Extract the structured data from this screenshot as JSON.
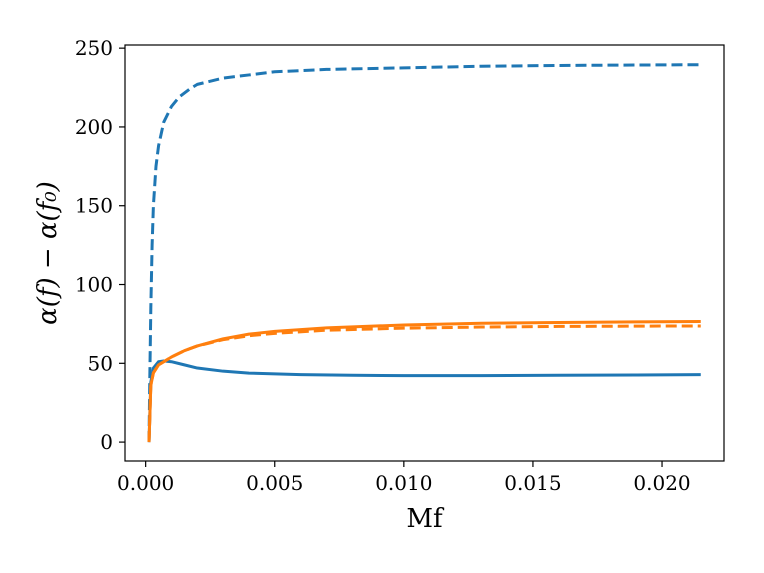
{
  "chart_data": {
    "type": "line",
    "xlabel": "Mf",
    "ylabel": "α(f) − α(f₀)",
    "xlim": [
      -0.0008,
      0.0224
    ],
    "ylim": [
      -12,
      252
    ],
    "x_ticks": [
      0.0,
      0.005,
      0.01,
      0.015,
      0.02
    ],
    "x_tick_labels": [
      "0.000",
      "0.005",
      "0.010",
      "0.015",
      "0.020"
    ],
    "y_ticks": [
      0,
      50,
      100,
      150,
      200,
      250
    ],
    "y_tick_labels": [
      "0",
      "50",
      "100",
      "150",
      "200",
      "250"
    ],
    "grid": false,
    "series": [
      {
        "color": "#1f77b4",
        "style": "dashed",
        "x": [
          0.00013,
          0.00016,
          0.0002,
          0.00025,
          0.0003,
          0.0004,
          0.0005,
          0.0007,
          0.001,
          0.0013,
          0.0017,
          0.002,
          0.003,
          0.004,
          0.005,
          0.007,
          0.01,
          0.013,
          0.016,
          0.019,
          0.0215
        ],
        "y": [
          0,
          40,
          85,
          125,
          150,
          175,
          188,
          203,
          213,
          219,
          224,
          227,
          231,
          233,
          235,
          236.5,
          237.5,
          238.5,
          239,
          239.3,
          239.5
        ]
      },
      {
        "color": "#1f77b4",
        "style": "solid",
        "x": [
          0.00013,
          0.0002,
          0.0003,
          0.0005,
          0.0007,
          0.001,
          0.0015,
          0.002,
          0.003,
          0.004,
          0.006,
          0.008,
          0.01,
          0.013,
          0.016,
          0.019,
          0.0215
        ],
        "y": [
          0,
          38,
          47,
          51,
          51.5,
          51,
          49,
          47,
          45,
          43.8,
          42.8,
          42.4,
          42.2,
          42.2,
          42.4,
          42.6,
          42.8
        ]
      },
      {
        "color": "#ff7f0e",
        "style": "dashed",
        "x": [
          0.00013,
          0.0002,
          0.0003,
          0.0005,
          0.0007,
          0.001,
          0.0015,
          0.002,
          0.003,
          0.004,
          0.005,
          0.007,
          0.01,
          0.013,
          0.016,
          0.019,
          0.0215
        ],
        "y": [
          0,
          36,
          44,
          49,
          51,
          54,
          58,
          61,
          65,
          67.5,
          69,
          71,
          72.3,
          73,
          73.4,
          73.6,
          73.7
        ]
      },
      {
        "color": "#ff7f0e",
        "style": "solid",
        "x": [
          0.00013,
          0.0002,
          0.0003,
          0.0005,
          0.0007,
          0.001,
          0.0015,
          0.002,
          0.003,
          0.004,
          0.005,
          0.007,
          0.01,
          0.013,
          0.016,
          0.019,
          0.0215
        ],
        "y": [
          0,
          36,
          44,
          49,
          51,
          54,
          58,
          61,
          65.5,
          68.5,
          70.3,
          72.5,
          74.3,
          75.4,
          75.9,
          76.3,
          76.5
        ]
      }
    ]
  }
}
